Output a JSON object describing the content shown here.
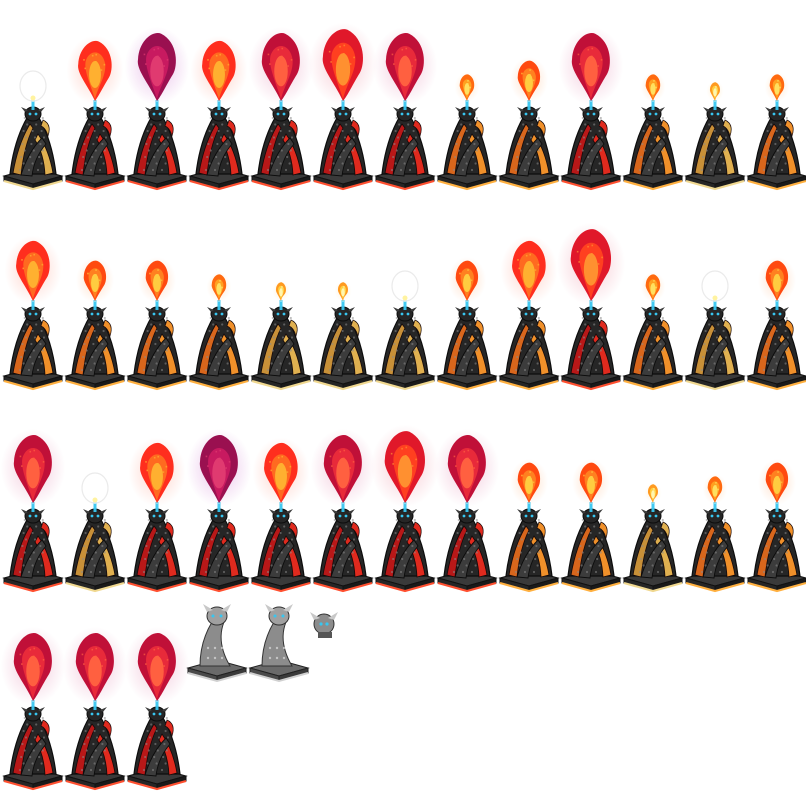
{
  "sheet": {
    "background": "#ffffff",
    "colors": {
      "stone_dark": "#262626",
      "stone_mid": "#3c3c3c",
      "stone_light": "#6a6a6a",
      "scale_highlight": "#8a8a8a",
      "base_top": "#3a3a3a",
      "crystal": "#37c6f0",
      "grey_stone": "#8c8c8c",
      "grey_light": "#c8c8c8"
    },
    "palettes": {
      "gold": {
        "trim": "#e0b050",
        "inner": "#c89038",
        "edge": "#f0d890"
      },
      "orange": {
        "trim": "#f0902a",
        "inner": "#d8661c",
        "edge": "#ffb040"
      },
      "red": {
        "trim": "#e02a1e",
        "inner": "#b81818",
        "edge": "#ff5030"
      }
    },
    "flame_types": {
      "none": {
        "size": 0,
        "outer": "#ffffff",
        "mid": "#ffffff",
        "core": "#ffffff",
        "glow": "#ffffff"
      },
      "spark": {
        "size": 9,
        "outer": "#ff9a20",
        "mid": "#ffd040",
        "core": "#fff6b0",
        "glow": "#ffe8c0"
      },
      "small": {
        "size": 13,
        "outer": "#ff6a10",
        "mid": "#ffa020",
        "core": "#ffe060",
        "glow": "#ffd8b0"
      },
      "medium": {
        "size": 20,
        "outer": "#ff4a10",
        "mid": "#ff8020",
        "core": "#ffcc40",
        "glow": "#ffc8a0"
      },
      "large": {
        "size": 30,
        "outer": "#ff2e1e",
        "mid": "#ff6a20",
        "core": "#ffb030",
        "glow": "#ffb0a0"
      },
      "huge": {
        "size": 36,
        "outer": "#e0182a",
        "mid": "#ff4020",
        "core": "#ff9030",
        "glow": "#f0a0b0"
      },
      "crimson": {
        "size": 34,
        "outer": "#c01038",
        "mid": "#e82a3a",
        "core": "#ff6040",
        "glow": "#e8a0c0"
      },
      "violet": {
        "size": 34,
        "outer": "#9a1050",
        "mid": "#c81a60",
        "core": "#e03a70",
        "glow": "#d890d8"
      }
    },
    "rows": [
      {
        "frames": [
          {
            "flame": "none",
            "color": "gold"
          },
          {
            "flame": "large",
            "color": "red"
          },
          {
            "flame": "violet",
            "color": "red"
          },
          {
            "flame": "large",
            "color": "red"
          },
          {
            "flame": "crimson",
            "color": "red"
          },
          {
            "flame": "huge",
            "color": "red"
          },
          {
            "flame": "crimson",
            "color": "red"
          },
          {
            "flame": "small",
            "color": "orange"
          },
          {
            "flame": "medium",
            "color": "orange"
          },
          {
            "flame": "crimson",
            "color": "red"
          },
          {
            "flame": "small",
            "color": "orange"
          },
          {
            "flame": "spark",
            "color": "gold"
          },
          {
            "flame": "small",
            "color": "orange"
          }
        ]
      },
      {
        "frames": [
          {
            "flame": "large",
            "color": "orange"
          },
          {
            "flame": "medium",
            "color": "orange"
          },
          {
            "flame": "medium",
            "color": "orange"
          },
          {
            "flame": "small",
            "color": "orange"
          },
          {
            "flame": "spark",
            "color": "gold"
          },
          {
            "flame": "spark",
            "color": "gold"
          },
          {
            "flame": "none",
            "color": "gold"
          },
          {
            "flame": "medium",
            "color": "orange"
          },
          {
            "flame": "large",
            "color": "orange"
          },
          {
            "flame": "huge",
            "color": "red"
          },
          {
            "flame": "small",
            "color": "orange"
          },
          {
            "flame": "none",
            "color": "gold"
          },
          {
            "flame": "medium",
            "color": "orange"
          }
        ]
      },
      {
        "frames": [
          {
            "flame": "crimson",
            "color": "red"
          },
          {
            "flame": "none",
            "color": "gold"
          },
          {
            "flame": "large",
            "color": "red"
          },
          {
            "flame": "violet",
            "color": "red"
          },
          {
            "flame": "large",
            "color": "red"
          },
          {
            "flame": "crimson",
            "color": "red"
          },
          {
            "flame": "huge",
            "color": "red"
          },
          {
            "flame": "crimson",
            "color": "red"
          },
          {
            "flame": "medium",
            "color": "orange"
          },
          {
            "flame": "medium",
            "color": "orange"
          },
          {
            "flame": "spark",
            "color": "gold"
          },
          {
            "flame": "small",
            "color": "orange"
          },
          {
            "flame": "medium",
            "color": "orange"
          }
        ]
      },
      {
        "frames": [
          {
            "flame": "crimson",
            "color": "red"
          },
          {
            "flame": "crimson",
            "color": "red"
          },
          {
            "flame": "crimson",
            "color": "red"
          }
        ]
      }
    ],
    "grey_parts": [
      {
        "kind": "full"
      },
      {
        "kind": "full"
      },
      {
        "kind": "head"
      }
    ]
  }
}
